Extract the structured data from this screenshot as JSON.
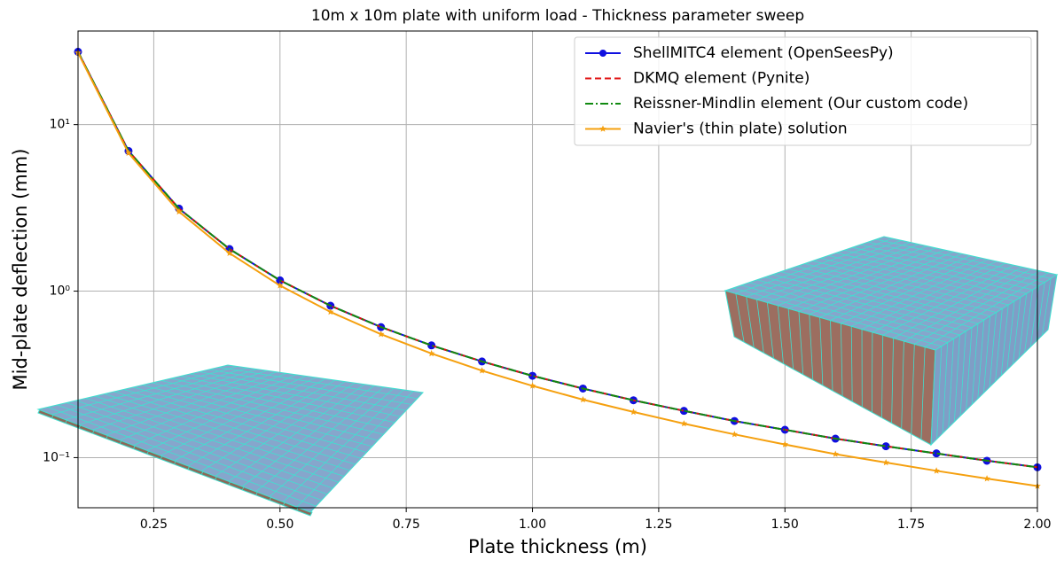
{
  "chart_data": {
    "type": "line",
    "title": "10m x 10m plate with uniform load - Thickness parameter sweep",
    "x_label": "Plate thickness (m)",
    "y_label": "Mid-plate deflection (mm)",
    "x": [
      0.1,
      0.2,
      0.3,
      0.4,
      0.5,
      0.6,
      0.7,
      0.8,
      0.9,
      1.0,
      1.1,
      1.2,
      1.3,
      1.4,
      1.5,
      1.6,
      1.7,
      1.8,
      1.9,
      2.0
    ],
    "series": [
      {
        "name": "ShellMITC4 element (OpenSeesPy)",
        "color": "#1010e0",
        "linestyle": "solid",
        "marker": "circle",
        "values": [
          27.4,
          6.95,
          3.13,
          1.79,
          1.16,
          0.817,
          0.608,
          0.472,
          0.378,
          0.31,
          0.26,
          0.221,
          0.191,
          0.166,
          0.147,
          0.13,
          0.117,
          0.106,
          0.0958,
          0.0875
        ]
      },
      {
        "name": "DKMQ element (Pynite)",
        "color": "#e01010",
        "linestyle": "dashed",
        "marker": null,
        "values": [
          27.4,
          6.95,
          3.13,
          1.79,
          1.16,
          0.817,
          0.608,
          0.472,
          0.378,
          0.31,
          0.26,
          0.221,
          0.191,
          0.166,
          0.147,
          0.13,
          0.117,
          0.106,
          0.0958,
          0.0875
        ]
      },
      {
        "name": "Reissner-Mindlin element (Our custom code)",
        "color": "#108a10",
        "linestyle": "dashdot",
        "marker": null,
        "values": [
          27.4,
          6.95,
          3.13,
          1.79,
          1.16,
          0.817,
          0.608,
          0.472,
          0.378,
          0.31,
          0.26,
          0.221,
          0.191,
          0.166,
          0.147,
          0.13,
          0.117,
          0.106,
          0.0958,
          0.0875
        ]
      },
      {
        "name": "Navier's (thin plate) solution",
        "color": "#f5a00f",
        "linestyle": "solid",
        "marker": "star",
        "values": [
          27,
          6.75,
          3.0,
          1.69,
          1.08,
          0.75,
          0.551,
          0.422,
          0.333,
          0.27,
          0.223,
          0.188,
          0.16,
          0.138,
          0.12,
          0.105,
          0.0934,
          0.0833,
          0.0748,
          0.0675
        ]
      }
    ],
    "xlim": [
      0.1,
      2.0
    ],
    "xticks": [
      0.25,
      {
        "value": 0.5,
        "label": "0.50"
      },
      0.75,
      {
        "value": 1.0,
        "label": "1.00"
      },
      1.25,
      {
        "value": 1.5,
        "label": "1.50"
      },
      1.75,
      {
        "value": 2.0,
        "label": "2.00"
      }
    ],
    "ylim": [
      0.05,
      36.5
    ],
    "yticks": [
      {
        "value": 0.1,
        "label": "10⁻¹"
      },
      {
        "value": 1,
        "label": "10⁰"
      },
      {
        "value": 10,
        "label": "10¹"
      }
    ],
    "log_y": true,
    "grid": true,
    "legend": "upper-right"
  }
}
